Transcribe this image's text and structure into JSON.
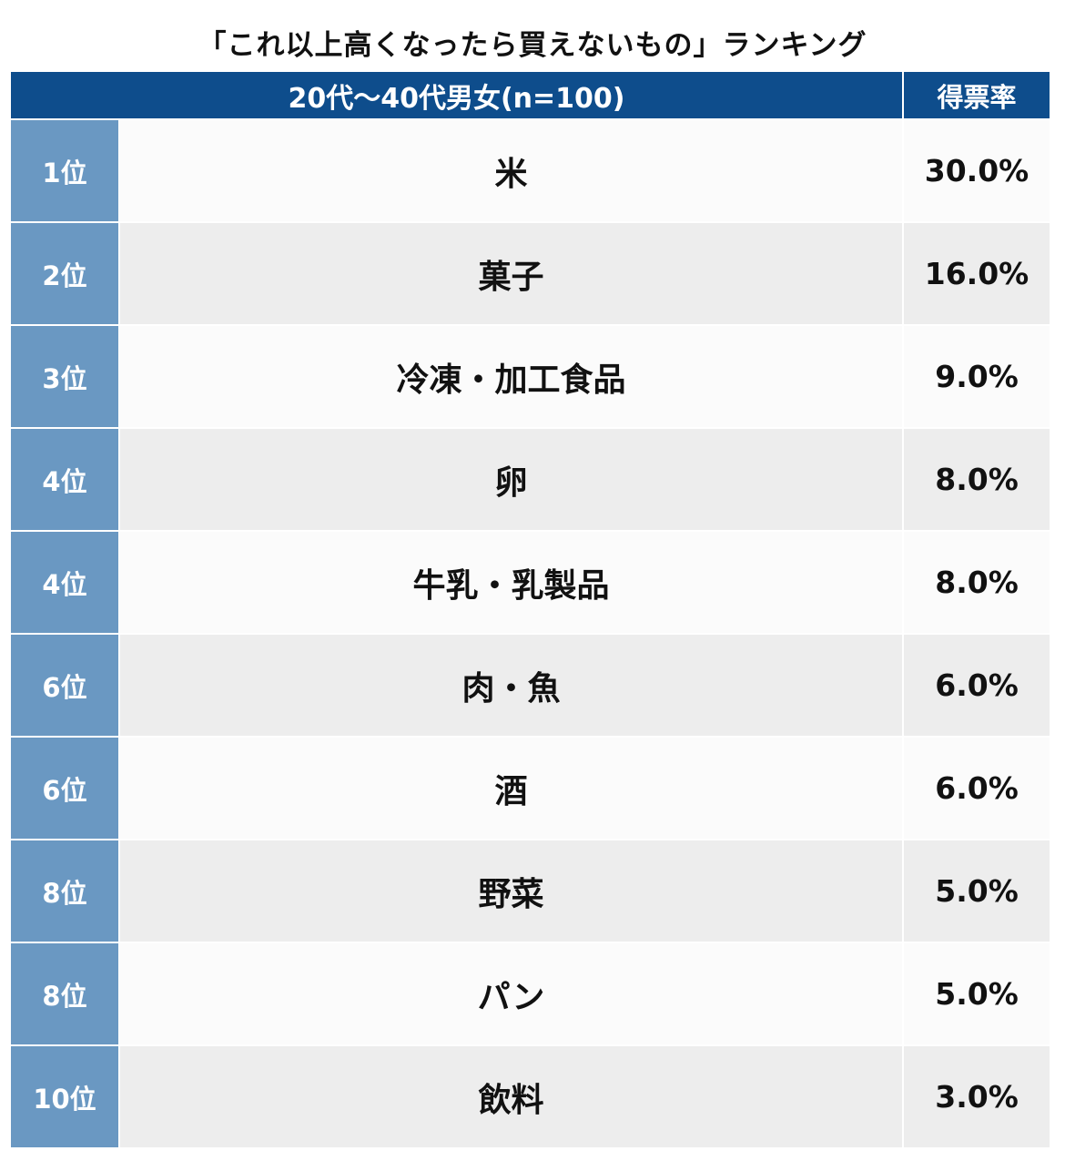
{
  "title": "「これ以上高くなったら買えないもの」ランキング",
  "table": {
    "header_main": "20代〜40代男女(n=100)",
    "header_rate": "得票率",
    "rows": [
      {
        "rank": "1位",
        "item": "米",
        "rate": "30.0%"
      },
      {
        "rank": "2位",
        "item": "菓子",
        "rate": "16.0%"
      },
      {
        "rank": "3位",
        "item": "冷凍・加工食品",
        "rate": "9.0%"
      },
      {
        "rank": "4位",
        "item": "卵",
        "rate": "8.0%"
      },
      {
        "rank": "4位",
        "item": "牛乳・乳製品",
        "rate": "8.0%"
      },
      {
        "rank": "6位",
        "item": "肉・魚",
        "rate": "6.0%"
      },
      {
        "rank": "6位",
        "item": "酒",
        "rate": "6.0%"
      },
      {
        "rank": "8位",
        "item": "野菜",
        "rate": "5.0%"
      },
      {
        "rank": "8位",
        "item": "パン",
        "rate": "5.0%"
      },
      {
        "rank": "10位",
        "item": "飲料",
        "rate": "3.0%"
      }
    ]
  },
  "colors": {
    "header_bg": "#0e4d8c",
    "rank_bg": "#6a98c2",
    "row_light": "#fbfbfb",
    "row_dark": "#ededed"
  }
}
